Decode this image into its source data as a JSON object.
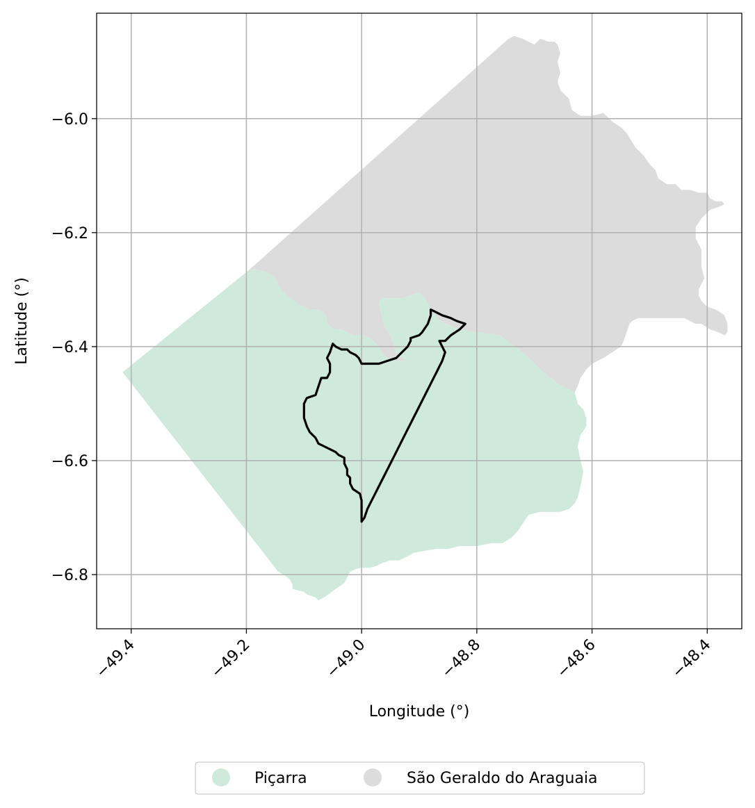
{
  "map": {
    "xlabel": "Longitude (°)",
    "ylabel": "Latitude (°)",
    "xlim": [
      -49.46,
      -48.34
    ],
    "ylim": [
      -6.895,
      -5.815
    ],
    "x_ticks": [
      -49.4,
      -49.2,
      -49.0,
      -48.8,
      -48.6,
      -48.4
    ],
    "x_tick_labels": [
      "−49.4",
      "−49.2",
      "−49.0",
      "−48.8",
      "−48.6",
      "−48.4"
    ],
    "y_ticks": [
      -6.8,
      -6.6,
      -6.4,
      -6.2,
      -6.0
    ],
    "y_tick_labels": [
      "−6.8",
      "−6.6",
      "−6.4",
      "−6.2",
      "−6.0"
    ],
    "grid": true,
    "legend_position": "bottom-center",
    "colors": {
      "picarra": "#cfeadd",
      "sao_geraldo": "#dcdcdc",
      "outline": "#000000",
      "grid": "#b0b0b0"
    },
    "layers": [
      {
        "name": "São Geraldo do Araguaia",
        "color": "#dcdcdc",
        "coords": [
          [
            -49.195,
            -6.265
          ],
          [
            -48.745,
            -5.86
          ],
          [
            -48.735,
            -5.855
          ],
          [
            -48.72,
            -5.86
          ],
          [
            -48.71,
            -5.865
          ],
          [
            -48.7,
            -5.87
          ],
          [
            -48.69,
            -5.86
          ],
          [
            -48.675,
            -5.865
          ],
          [
            -48.665,
            -5.865
          ],
          [
            -48.66,
            -5.87
          ],
          [
            -48.655,
            -5.885
          ],
          [
            -48.66,
            -5.9
          ],
          [
            -48.655,
            -5.92
          ],
          [
            -48.66,
            -5.935
          ],
          [
            -48.655,
            -5.95
          ],
          [
            -48.64,
            -5.965
          ],
          [
            -48.635,
            -5.985
          ],
          [
            -48.62,
            -5.995
          ],
          [
            -48.6,
            -5.995
          ],
          [
            -48.58,
            -5.99
          ],
          [
            -48.565,
            -6.005
          ],
          [
            -48.55,
            -6.015
          ],
          [
            -48.54,
            -6.025
          ],
          [
            -48.525,
            -6.05
          ],
          [
            -48.51,
            -6.065
          ],
          [
            -48.5,
            -6.08
          ],
          [
            -48.49,
            -6.09
          ],
          [
            -48.485,
            -6.105
          ],
          [
            -48.47,
            -6.115
          ],
          [
            -48.455,
            -6.115
          ],
          [
            -48.445,
            -6.125
          ],
          [
            -48.43,
            -6.125
          ],
          [
            -48.415,
            -6.13
          ],
          [
            -48.4,
            -6.13
          ],
          [
            -48.395,
            -6.14
          ],
          [
            -48.385,
            -6.145
          ],
          [
            -48.375,
            -6.145
          ],
          [
            -48.37,
            -6.15
          ],
          [
            -48.38,
            -6.155
          ],
          [
            -48.395,
            -6.16
          ],
          [
            -48.41,
            -6.175
          ],
          [
            -48.42,
            -6.19
          ],
          [
            -48.42,
            -6.21
          ],
          [
            -48.41,
            -6.23
          ],
          [
            -48.41,
            -6.26
          ],
          [
            -48.405,
            -6.28
          ],
          [
            -48.415,
            -6.3
          ],
          [
            -48.415,
            -6.31
          ],
          [
            -48.41,
            -6.32
          ],
          [
            -48.4,
            -6.33
          ],
          [
            -48.385,
            -6.335
          ],
          [
            -48.37,
            -6.345
          ],
          [
            -48.365,
            -6.36
          ],
          [
            -48.365,
            -6.375
          ],
          [
            -48.37,
            -6.38
          ],
          [
            -48.38,
            -6.375
          ],
          [
            -48.395,
            -6.37
          ],
          [
            -48.41,
            -6.36
          ],
          [
            -48.42,
            -6.36
          ],
          [
            -48.44,
            -6.35
          ],
          [
            -48.46,
            -6.35
          ],
          [
            -48.49,
            -6.35
          ],
          [
            -48.52,
            -6.35
          ],
          [
            -48.53,
            -6.355
          ],
          [
            -48.535,
            -6.36
          ],
          [
            -48.54,
            -6.375
          ],
          [
            -48.545,
            -6.39
          ],
          [
            -48.55,
            -6.4
          ],
          [
            -48.565,
            -6.41
          ],
          [
            -48.58,
            -6.42
          ],
          [
            -48.6,
            -6.43
          ],
          [
            -48.61,
            -6.44
          ],
          [
            -48.62,
            -6.455
          ],
          [
            -48.625,
            -6.47
          ],
          [
            -48.63,
            -6.48
          ],
          [
            -48.66,
            -6.465
          ],
          [
            -48.69,
            -6.44
          ],
          [
            -48.71,
            -6.42
          ],
          [
            -48.74,
            -6.395
          ],
          [
            -48.76,
            -6.38
          ],
          [
            -48.8,
            -6.375
          ],
          [
            -48.83,
            -6.37
          ],
          [
            -48.855,
            -6.36
          ],
          [
            -48.87,
            -6.35
          ],
          [
            -48.88,
            -6.335
          ],
          [
            -48.89,
            -6.315
          ],
          [
            -48.9,
            -6.305
          ],
          [
            -48.915,
            -6.31
          ],
          [
            -48.93,
            -6.315
          ],
          [
            -48.945,
            -6.315
          ],
          [
            -48.965,
            -6.315
          ],
          [
            -48.97,
            -6.325
          ],
          [
            -48.965,
            -6.345
          ],
          [
            -48.96,
            -6.365
          ],
          [
            -48.95,
            -6.38
          ],
          [
            -48.945,
            -6.395
          ],
          [
            -48.94,
            -6.41
          ],
          [
            -48.93,
            -6.42
          ],
          [
            -48.92,
            -6.425
          ],
          [
            -48.95,
            -6.425
          ],
          [
            -48.965,
            -6.41
          ],
          [
            -48.975,
            -6.395
          ],
          [
            -48.985,
            -6.385
          ],
          [
            -49.0,
            -6.38
          ],
          [
            -49.015,
            -6.38
          ],
          [
            -49.025,
            -6.375
          ],
          [
            -49.035,
            -6.37
          ],
          [
            -49.045,
            -6.37
          ],
          [
            -49.055,
            -6.365
          ],
          [
            -49.06,
            -6.36
          ],
          [
            -49.06,
            -6.35
          ],
          [
            -49.065,
            -6.34
          ],
          [
            -49.075,
            -6.335
          ],
          [
            -49.09,
            -6.335
          ],
          [
            -49.1,
            -6.33
          ],
          [
            -49.11,
            -6.325
          ],
          [
            -49.13,
            -6.31
          ],
          [
            -49.14,
            -6.3
          ],
          [
            -49.15,
            -6.28
          ],
          [
            -49.165,
            -6.27
          ],
          [
            -49.18,
            -6.265
          ]
        ]
      },
      {
        "name": "Piçarra",
        "color": "#cfeadd",
        "coords": [
          [
            -49.415,
            -6.445
          ],
          [
            -49.195,
            -6.265
          ],
          [
            -49.18,
            -6.265
          ],
          [
            -49.165,
            -6.27
          ],
          [
            -49.15,
            -6.28
          ],
          [
            -49.14,
            -6.3
          ],
          [
            -49.13,
            -6.31
          ],
          [
            -49.11,
            -6.325
          ],
          [
            -49.1,
            -6.33
          ],
          [
            -49.09,
            -6.335
          ],
          [
            -49.075,
            -6.335
          ],
          [
            -49.065,
            -6.34
          ],
          [
            -49.06,
            -6.35
          ],
          [
            -49.06,
            -6.36
          ],
          [
            -49.055,
            -6.365
          ],
          [
            -49.045,
            -6.37
          ],
          [
            -49.035,
            -6.37
          ],
          [
            -49.025,
            -6.375
          ],
          [
            -49.015,
            -6.38
          ],
          [
            -49.0,
            -6.38
          ],
          [
            -48.985,
            -6.385
          ],
          [
            -48.975,
            -6.395
          ],
          [
            -48.965,
            -6.41
          ],
          [
            -48.95,
            -6.425
          ],
          [
            -48.92,
            -6.425
          ],
          [
            -48.93,
            -6.42
          ],
          [
            -48.94,
            -6.41
          ],
          [
            -48.945,
            -6.395
          ],
          [
            -48.95,
            -6.38
          ],
          [
            -48.96,
            -6.365
          ],
          [
            -48.965,
            -6.345
          ],
          [
            -48.97,
            -6.325
          ],
          [
            -48.965,
            -6.315
          ],
          [
            -48.945,
            -6.315
          ],
          [
            -48.93,
            -6.315
          ],
          [
            -48.915,
            -6.31
          ],
          [
            -48.9,
            -6.305
          ],
          [
            -48.89,
            -6.315
          ],
          [
            -48.88,
            -6.335
          ],
          [
            -48.87,
            -6.35
          ],
          [
            -48.855,
            -6.36
          ],
          [
            -48.83,
            -6.37
          ],
          [
            -48.8,
            -6.375
          ],
          [
            -48.76,
            -6.38
          ],
          [
            -48.74,
            -6.395
          ],
          [
            -48.71,
            -6.42
          ],
          [
            -48.69,
            -6.44
          ],
          [
            -48.66,
            -6.465
          ],
          [
            -48.63,
            -6.48
          ],
          [
            -48.625,
            -6.5
          ],
          [
            -48.615,
            -6.51
          ],
          [
            -48.61,
            -6.525
          ],
          [
            -48.61,
            -6.54
          ],
          [
            -48.62,
            -6.555
          ],
          [
            -48.625,
            -6.575
          ],
          [
            -48.62,
            -6.6
          ],
          [
            -48.615,
            -6.62
          ],
          [
            -48.62,
            -6.645
          ],
          [
            -48.625,
            -6.665
          ],
          [
            -48.63,
            -6.675
          ],
          [
            -48.64,
            -6.685
          ],
          [
            -48.655,
            -6.69
          ],
          [
            -48.67,
            -6.69
          ],
          [
            -48.69,
            -6.69
          ],
          [
            -48.71,
            -6.695
          ],
          [
            -48.72,
            -6.71
          ],
          [
            -48.73,
            -6.725
          ],
          [
            -48.74,
            -6.735
          ],
          [
            -48.755,
            -6.745
          ],
          [
            -48.775,
            -6.745
          ],
          [
            -48.8,
            -6.75
          ],
          [
            -48.83,
            -6.75
          ],
          [
            -48.85,
            -6.755
          ],
          [
            -48.87,
            -6.755
          ],
          [
            -48.89,
            -6.758
          ],
          [
            -48.91,
            -6.762
          ],
          [
            -48.92,
            -6.768
          ],
          [
            -48.935,
            -6.775
          ],
          [
            -48.95,
            -6.775
          ],
          [
            -48.965,
            -6.78
          ],
          [
            -48.975,
            -6.785
          ],
          [
            -48.985,
            -6.788
          ],
          [
            -49.0,
            -6.788
          ],
          [
            -49.01,
            -6.79
          ],
          [
            -49.02,
            -6.795
          ],
          [
            -49.025,
            -6.805
          ],
          [
            -49.03,
            -6.815
          ],
          [
            -49.045,
            -6.825
          ],
          [
            -49.065,
            -6.84
          ],
          [
            -49.075,
            -6.845
          ],
          [
            -49.08,
            -6.84
          ],
          [
            -49.095,
            -6.835
          ],
          [
            -49.1,
            -6.83
          ],
          [
            -49.11,
            -6.828
          ],
          [
            -49.12,
            -6.825
          ],
          [
            -49.12,
            -6.818
          ],
          [
            -49.125,
            -6.808
          ],
          [
            -49.135,
            -6.8
          ],
          [
            -49.145,
            -6.795
          ],
          [
            -49.16,
            -6.775
          ]
        ]
      }
    ],
    "outline": {
      "color": "#000000",
      "coords": [
        [
          -48.88,
          -6.335
        ],
        [
          -48.87,
          -6.34
        ],
        [
          -48.86,
          -6.345
        ],
        [
          -48.845,
          -6.35
        ],
        [
          -48.835,
          -6.355
        ],
        [
          -48.82,
          -6.36
        ],
        [
          -48.83,
          -6.37
        ],
        [
          -48.845,
          -6.38
        ],
        [
          -48.855,
          -6.39
        ],
        [
          -48.865,
          -6.39
        ],
        [
          -48.86,
          -6.4
        ],
        [
          -48.855,
          -6.41
        ],
        [
          -48.86,
          -6.425
        ],
        [
          -48.87,
          -6.445
        ],
        [
          -48.88,
          -6.465
        ],
        [
          -48.89,
          -6.485
        ],
        [
          -48.9,
          -6.505
        ],
        [
          -48.91,
          -6.525
        ],
        [
          -48.92,
          -6.545
        ],
        [
          -48.93,
          -6.565
        ],
        [
          -48.94,
          -6.585
        ],
        [
          -48.95,
          -6.605
        ],
        [
          -48.96,
          -6.625
        ],
        [
          -48.97,
          -6.645
        ],
        [
          -48.98,
          -6.665
        ],
        [
          -48.99,
          -6.685
        ],
        [
          -48.995,
          -6.7
        ],
        [
          -49.0,
          -6.707
        ],
        [
          -49.0,
          -6.695
        ],
        [
          -49.0,
          -6.67
        ],
        [
          -49.003,
          -6.658
        ],
        [
          -49.015,
          -6.65
        ],
        [
          -49.02,
          -6.64
        ],
        [
          -49.02,
          -6.63
        ],
        [
          -49.025,
          -6.625
        ],
        [
          -49.025,
          -6.615
        ],
        [
          -49.03,
          -6.605
        ],
        [
          -49.03,
          -6.595
        ],
        [
          -49.04,
          -6.59
        ],
        [
          -49.045,
          -6.585
        ],
        [
          -49.055,
          -6.58
        ],
        [
          -49.065,
          -6.575
        ],
        [
          -49.075,
          -6.57
        ],
        [
          -49.08,
          -6.56
        ],
        [
          -49.09,
          -6.55
        ],
        [
          -49.095,
          -6.54
        ],
        [
          -49.1,
          -6.525
        ],
        [
          -49.1,
          -6.51
        ],
        [
          -49.1,
          -6.5
        ],
        [
          -49.095,
          -6.49
        ],
        [
          -49.08,
          -6.485
        ],
        [
          -49.075,
          -6.47
        ],
        [
          -49.07,
          -6.455
        ],
        [
          -49.06,
          -6.455
        ],
        [
          -49.055,
          -6.445
        ],
        [
          -49.055,
          -6.43
        ],
        [
          -49.06,
          -6.42
        ],
        [
          -49.055,
          -6.41
        ],
        [
          -49.05,
          -6.395
        ],
        [
          -49.045,
          -6.4
        ],
        [
          -49.035,
          -6.405
        ],
        [
          -49.025,
          -6.405
        ],
        [
          -49.02,
          -6.41
        ],
        [
          -49.01,
          -6.415
        ],
        [
          -49.005,
          -6.42
        ],
        [
          -49.0,
          -6.43
        ],
        [
          -48.99,
          -6.43
        ],
        [
          -48.97,
          -6.43
        ],
        [
          -48.955,
          -6.425
        ],
        [
          -48.94,
          -6.42
        ],
        [
          -48.93,
          -6.41
        ],
        [
          -48.92,
          -6.4
        ],
        [
          -48.915,
          -6.39
        ],
        [
          -48.915,
          -6.385
        ],
        [
          -48.9,
          -6.38
        ],
        [
          -48.895,
          -6.375
        ],
        [
          -48.885,
          -6.36
        ],
        [
          -48.88,
          -6.345
        ],
        [
          -48.88,
          -6.335
        ]
      ]
    },
    "legend": [
      {
        "label": "Piçarra",
        "color": "#cfeadd"
      },
      {
        "label": "São Geraldo do Araguaia",
        "color": "#dcdcdc"
      }
    ]
  }
}
